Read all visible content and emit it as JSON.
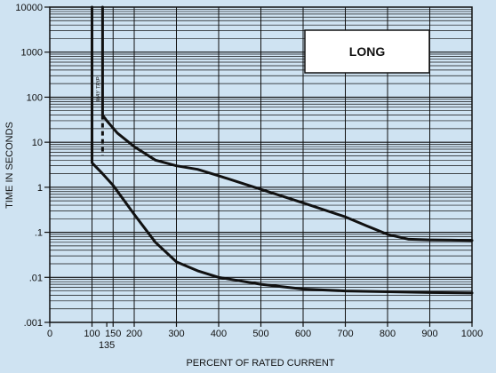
{
  "chart_data": {
    "type": "line",
    "title": "",
    "xlabel": "PERCENT OF RATED CURRENT",
    "ylabel": "TIME IN SECONDS",
    "xscale": "linear",
    "yscale": "log",
    "xlim": [
      0,
      1000
    ],
    "ylim": [
      0.001,
      10000
    ],
    "grid": true,
    "x_ticks": [
      {
        "value": 0,
        "label": "0"
      },
      {
        "value": 100,
        "label": "100"
      },
      {
        "value": 150,
        "label": "150"
      },
      {
        "value": 200,
        "label": "200"
      },
      {
        "value": 300,
        "label": "300"
      },
      {
        "value": 400,
        "label": "400"
      },
      {
        "value": 500,
        "label": "500"
      },
      {
        "value": 600,
        "label": "600"
      },
      {
        "value": 700,
        "label": "700"
      },
      {
        "value": 800,
        "label": "800"
      },
      {
        "value": 900,
        "label": "900"
      },
      {
        "value": 1000,
        "label": "1000"
      }
    ],
    "x_extra_tick": {
      "value": 135,
      "label": "135"
    },
    "y_ticks": [
      {
        "value": 0.001,
        "label": ".001"
      },
      {
        "value": 0.01,
        "label": ".01"
      },
      {
        "value": 0.1,
        "label": ".1"
      },
      {
        "value": 1,
        "label": "1"
      },
      {
        "value": 10,
        "label": "10"
      },
      {
        "value": 100,
        "label": "100"
      },
      {
        "value": 1000,
        "label": "1000"
      },
      {
        "value": 10000,
        "label": "10000"
      }
    ],
    "series": [
      {
        "points": [
          {
            "x": 125,
            "y": 10000
          },
          {
            "x": 125,
            "y": 40
          },
          {
            "x": 135,
            "y": 30
          },
          {
            "x": 160,
            "y": 16
          },
          {
            "x": 200,
            "y": 8
          },
          {
            "x": 250,
            "y": 4
          },
          {
            "x": 300,
            "y": 3
          },
          {
            "x": 350,
            "y": 2.5
          },
          {
            "x": 400,
            "y": 1.8
          },
          {
            "x": 500,
            "y": 0.9
          },
          {
            "x": 600,
            "y": 0.45
          },
          {
            "x": 700,
            "y": 0.22
          },
          {
            "x": 750,
            "y": 0.14
          },
          {
            "x": 800,
            "y": 0.09
          },
          {
            "x": 850,
            "y": 0.07
          },
          {
            "x": 900,
            "y": 0.068
          },
          {
            "x": 1000,
            "y": 0.066
          }
        ]
      },
      {
        "points": [
          {
            "x": 100,
            "y": 10000
          },
          {
            "x": 100,
            "y": 3.5
          },
          {
            "x": 125,
            "y": 2
          },
          {
            "x": 150,
            "y": 1.1
          },
          {
            "x": 200,
            "y": 0.25
          },
          {
            "x": 250,
            "y": 0.06
          },
          {
            "x": 300,
            "y": 0.022
          },
          {
            "x": 350,
            "y": 0.014
          },
          {
            "x": 400,
            "y": 0.01
          },
          {
            "x": 500,
            "y": 0.007
          },
          {
            "x": 600,
            "y": 0.0055
          },
          {
            "x": 700,
            "y": 0.005
          },
          {
            "x": 800,
            "y": 0.0048
          },
          {
            "x": 900,
            "y": 0.0046
          },
          {
            "x": 1000,
            "y": 0.0045
          }
        ]
      }
    ],
    "band": {
      "x": 125,
      "y_from": 5,
      "y_to": 40,
      "style": "dashed"
    },
    "annotations": [
      {
        "text": "MAY TRIP",
        "near_x": 110,
        "near_y": 150
      }
    ],
    "label_box": {
      "text": "LONG",
      "position": "top-right"
    }
  }
}
